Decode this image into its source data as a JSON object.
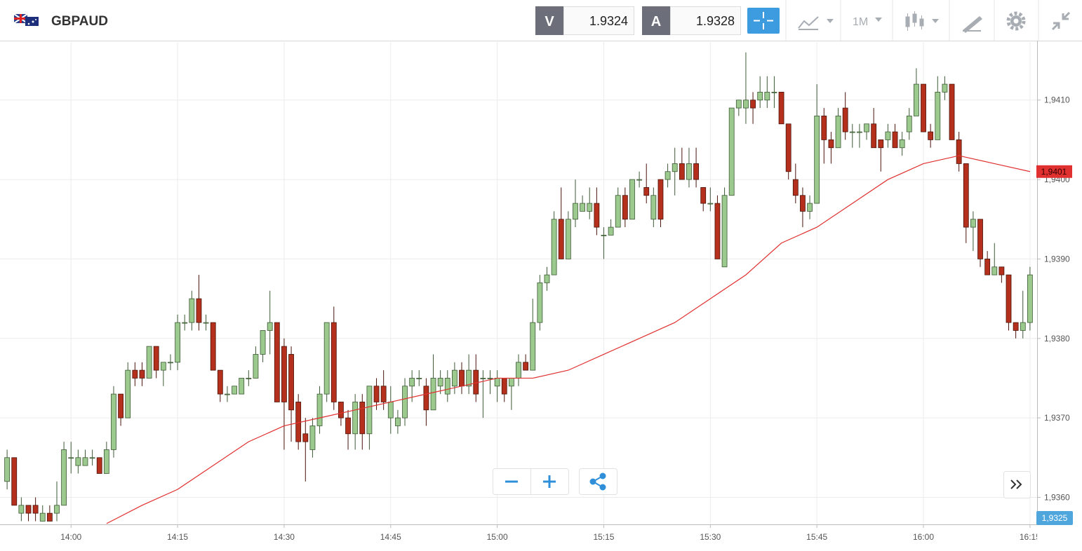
{
  "header": {
    "symbol": "GBPAUD",
    "bid_label": "V",
    "bid": "1.9324",
    "ask_label": "A",
    "ask": "1.9328",
    "timeframe": "1M"
  },
  "chart_data": {
    "type": "candlestick",
    "x": [
      "13:51",
      "13:52",
      "13:53",
      "13:54",
      "13:55",
      "13:56",
      "13:57",
      "13:58",
      "13:59",
      "14:00",
      "14:01",
      "14:02",
      "14:03",
      "14:04",
      "14:05",
      "14:06",
      "14:07",
      "14:08",
      "14:09",
      "14:10",
      "14:11",
      "14:12",
      "14:13",
      "14:14",
      "14:15",
      "14:16",
      "14:17",
      "14:18",
      "14:19",
      "14:20",
      "14:21",
      "14:22",
      "14:23",
      "14:24",
      "14:25",
      "14:26",
      "14:27",
      "14:28",
      "14:29",
      "14:30",
      "14:31",
      "14:32",
      "14:33",
      "14:34",
      "14:35",
      "14:36",
      "14:37",
      "14:38",
      "14:39",
      "14:40",
      "14:41",
      "14:42",
      "14:43",
      "14:44",
      "14:45",
      "14:46",
      "14:47",
      "14:48",
      "14:49",
      "14:50",
      "14:51",
      "14:52",
      "14:53",
      "14:54",
      "14:55",
      "14:56",
      "14:57",
      "14:58",
      "14:59",
      "15:00",
      "15:01",
      "15:02",
      "15:03",
      "15:04",
      "15:05",
      "15:06",
      "15:07",
      "15:08",
      "15:09",
      "15:10",
      "15:11",
      "15:12",
      "15:13",
      "15:14",
      "15:15",
      "15:16",
      "15:17",
      "15:18",
      "15:19",
      "15:20",
      "15:21",
      "15:22",
      "15:23",
      "15:24",
      "15:25",
      "15:26",
      "15:27",
      "15:28",
      "15:29",
      "15:30",
      "15:31",
      "15:32",
      "15:33",
      "15:34",
      "15:35",
      "15:36",
      "15:37",
      "15:38",
      "15:39",
      "15:40",
      "15:41",
      "15:42",
      "15:43",
      "15:44",
      "15:45",
      "15:46",
      "15:47",
      "15:48",
      "15:49",
      "15:50",
      "15:51",
      "15:52",
      "15:53",
      "15:54",
      "15:55",
      "15:56",
      "15:57",
      "15:58",
      "15:59",
      "16:00",
      "16:01",
      "16:02",
      "16:03",
      "16:04",
      "16:05",
      "16:06",
      "16:07",
      "16:08",
      "16:09",
      "16:10",
      "16:11",
      "16:12",
      "16:13",
      "16:14",
      "16:15"
    ],
    "open": [
      1.9362,
      1.9365,
      1.9358,
      1.9359,
      1.9359,
      1.9357,
      1.9358,
      1.9358,
      1.9359,
      1.9365,
      1.9364,
      1.9364,
      1.9365,
      1.9365,
      1.9363,
      1.9366,
      1.9373,
      1.937,
      1.9376,
      1.9376,
      1.9375,
      1.9379,
      1.9376,
      1.9377,
      1.9377,
      1.9382,
      1.9382,
      1.9385,
      1.9382,
      1.9382,
      1.9376,
      1.9373,
      1.9373,
      1.9373,
      1.9375,
      1.9375,
      1.9378,
      1.9381,
      1.9382,
      1.9379,
      1.9378,
      1.9372,
      1.9368,
      1.9366,
      1.9369,
      1.9373,
      1.9382,
      1.9372,
      1.937,
      1.9368,
      1.9372,
      1.9368,
      1.9374,
      1.9374,
      1.937,
      1.9369,
      1.937,
      1.9374,
      1.9375,
      1.9374,
      1.9371,
      1.9374,
      1.9373,
      1.9374,
      1.9376,
      1.9374,
      1.9376,
      1.9375,
      1.9375,
      1.9374,
      1.9375,
      1.9374,
      1.9375,
      1.9377,
      1.9376,
      1.9382,
      1.9387,
      1.9388,
      1.9395,
      1.939,
      1.9395,
      1.9396,
      1.9396,
      1.9397,
      1.9393,
      1.9393,
      1.9394,
      1.9398,
      1.9395,
      1.94,
      1.9399,
      1.9395,
      1.94,
      1.94,
      1.9401,
      1.9402,
      1.94,
      1.9402,
      1.9399,
      1.9397,
      1.9397,
      1.9389,
      1.9398,
      1.9409,
      1.9409,
      1.941,
      1.941,
      1.941,
      1.9411,
      1.9411,
      1.9407,
      1.94,
      1.9398,
      1.9396,
      1.9397,
      1.9408,
      1.9405,
      1.9404,
      1.9409,
      1.9406,
      1.9406,
      1.9406,
      1.9407,
      1.9405,
      1.9405,
      1.9406,
      1.9404,
      1.9406,
      1.9408,
      1.9412,
      1.9406,
      1.9405,
      1.9411,
      1.9412,
      1.9405,
      1.9402,
      1.9394,
      1.9395,
      1.939,
      1.9388,
      1.9389,
      1.9388,
      1.9382,
      1.9381,
      1.9382
    ],
    "high": [
      1.9366,
      1.9365,
      1.936,
      1.9359,
      1.936,
      1.9359,
      1.9359,
      1.9362,
      1.9367,
      1.9367,
      1.9366,
      1.9366,
      1.9366,
      1.9365,
      1.9367,
      1.9374,
      1.9373,
      1.9377,
      1.9377,
      1.9377,
      1.9379,
      1.9379,
      1.9377,
      1.9378,
      1.9383,
      1.9383,
      1.9386,
      1.9388,
      1.9383,
      1.9382,
      1.9376,
      1.9374,
      1.9374,
      1.9375,
      1.9376,
      1.9379,
      1.9381,
      1.9386,
      1.9382,
      1.938,
      1.9379,
      1.9373,
      1.937,
      1.937,
      1.9374,
      1.9382,
      1.9384,
      1.9372,
      1.9371,
      1.9373,
      1.9373,
      1.9374,
      1.9375,
      1.9376,
      1.9374,
      1.9371,
      1.9375,
      1.9376,
      1.9376,
      1.9375,
      1.9378,
      1.9376,
      1.9376,
      1.9377,
      1.9377,
      1.9378,
      1.9378,
      1.9376,
      1.9376,
      1.9376,
      1.9375,
      1.9375,
      1.9378,
      1.9378,
      1.9385,
      1.9388,
      1.9389,
      1.9396,
      1.9399,
      1.9396,
      1.94,
      1.9398,
      1.9399,
      1.9399,
      1.9394,
      1.9395,
      1.9399,
      1.9399,
      1.94,
      1.9401,
      1.9402,
      1.9399,
      1.94,
      1.9402,
      1.9404,
      1.9404,
      1.9404,
      1.9404,
      1.9399,
      1.9399,
      1.9398,
      1.9399,
      1.9409,
      1.941,
      1.9416,
      1.9411,
      1.9413,
      1.9413,
      1.9413,
      1.9411,
      1.9407,
      1.9402,
      1.9399,
      1.9398,
      1.9412,
      1.9409,
      1.9406,
      1.9409,
      1.9411,
      1.9407,
      1.9407,
      1.9407,
      1.9409,
      1.9405,
      1.9407,
      1.9407,
      1.9406,
      1.9409,
      1.9414,
      1.9412,
      1.9407,
      1.9413,
      1.9413,
      1.9412,
      1.9406,
      1.9402,
      1.9396,
      1.9395,
      1.9391,
      1.9392,
      1.9389,
      1.9388,
      1.9382,
      1.9386,
      1.9389
    ],
    "low": [
      1.9361,
      1.9359,
      1.9357,
      1.9357,
      1.9357,
      1.9357,
      1.9357,
      1.9357,
      1.9359,
      1.9363,
      1.9363,
      1.9364,
      1.9364,
      1.9363,
      1.9363,
      1.9365,
      1.9369,
      1.937,
      1.9374,
      1.9374,
      1.9375,
      1.9375,
      1.9374,
      1.9376,
      1.9376,
      1.9381,
      1.9381,
      1.9381,
      1.9381,
      1.9376,
      1.9372,
      1.9372,
      1.9373,
      1.9373,
      1.9374,
      1.9375,
      1.9377,
      1.9378,
      1.9372,
      1.9366,
      1.9367,
      1.9366,
      1.9362,
      1.9365,
      1.9368,
      1.9372,
      1.9371,
      1.9369,
      1.9366,
      1.9366,
      1.9366,
      1.9366,
      1.9371,
      1.9371,
      1.9368,
      1.9368,
      1.9369,
      1.9372,
      1.9374,
      1.9369,
      1.9371,
      1.9373,
      1.9372,
      1.9373,
      1.9373,
      1.9373,
      1.9372,
      1.937,
      1.9373,
      1.9372,
      1.9372,
      1.9371,
      1.9374,
      1.9376,
      1.9376,
      1.9381,
      1.9386,
      1.9388,
      1.939,
      1.939,
      1.9394,
      1.9396,
      1.9395,
      1.9393,
      1.939,
      1.9393,
      1.9394,
      1.9394,
      1.9395,
      1.9399,
      1.9397,
      1.9394,
      1.9394,
      1.9399,
      1.9398,
      1.94,
      1.9399,
      1.9399,
      1.9396,
      1.9396,
      1.939,
      1.9389,
      1.9398,
      1.9408,
      1.9407,
      1.9407,
      1.9409,
      1.9409,
      1.9409,
      1.9407,
      1.94,
      1.9397,
      1.9394,
      1.9395,
      1.9397,
      1.9402,
      1.9402,
      1.9404,
      1.9405,
      1.9404,
      1.9404,
      1.9405,
      1.9404,
      1.9401,
      1.9404,
      1.9404,
      1.9403,
      1.9405,
      1.9408,
      1.9406,
      1.9404,
      1.9405,
      1.941,
      1.9405,
      1.9401,
      1.9392,
      1.9391,
      1.9389,
      1.9388,
      1.9388,
      1.9387,
      1.9381,
      1.938,
      1.938,
      1.9381
    ],
    "close": [
      1.9365,
      1.9359,
      1.9359,
      1.9358,
      1.9358,
      1.9358,
      1.9357,
      1.9359,
      1.9366,
      1.9365,
      1.9365,
      1.9365,
      1.9365,
      1.9363,
      1.9366,
      1.9373,
      1.937,
      1.9376,
      1.9375,
      1.9375,
      1.9379,
      1.9376,
      1.9377,
      1.9377,
      1.9382,
      1.9382,
      1.9385,
      1.9382,
      1.9382,
      1.9376,
      1.9373,
      1.9373,
      1.9374,
      1.9375,
      1.9375,
      1.9378,
      1.9381,
      1.9382,
      1.9372,
      1.9372,
      1.9371,
      1.9367,
      1.9367,
      1.9369,
      1.9373,
      1.9382,
      1.9372,
      1.937,
      1.9368,
      1.9372,
      1.9368,
      1.9374,
      1.9372,
      1.9372,
      1.9372,
      1.937,
      1.9374,
      1.9375,
      1.9375,
      1.9371,
      1.9375,
      1.9375,
      1.9375,
      1.9376,
      1.9374,
      1.9376,
      1.9373,
      1.9375,
      1.9375,
      1.9375,
      1.9373,
      1.9375,
      1.9377,
      1.9376,
      1.9382,
      1.9387,
      1.9388,
      1.9395,
      1.939,
      1.9395,
      1.9397,
      1.9397,
      1.9397,
      1.9394,
      1.9393,
      1.9394,
      1.9398,
      1.9395,
      1.94,
      1.94,
      1.9398,
      1.9398,
      1.9395,
      1.9401,
      1.9402,
      1.94,
      1.9402,
      1.94,
      1.9397,
      1.9397,
      1.939,
      1.9398,
      1.9409,
      1.941,
      1.941,
      1.9409,
      1.9411,
      1.9411,
      1.9411,
      1.9407,
      1.9401,
      1.9398,
      1.9396,
      1.9397,
      1.9408,
      1.9405,
      1.9404,
      1.9408,
      1.9406,
      1.9406,
      1.9406,
      1.9407,
      1.9404,
      1.9404,
      1.9406,
      1.9404,
      1.9405,
      1.9408,
      1.9412,
      1.9406,
      1.9405,
      1.9411,
      1.9412,
      1.9405,
      1.9402,
      1.9394,
      1.9395,
      1.939,
      1.9388,
      1.9389,
      1.9388,
      1.9382,
      1.9381,
      1.9382,
      1.9388
    ],
    "up_color": "#9cc98d",
    "down_color": "#b5301c",
    "moving_average": {
      "color": "#e03030",
      "x": [
        "14:05",
        "14:10",
        "14:15",
        "14:20",
        "14:25",
        "14:30",
        "14:35",
        "14:40",
        "14:45",
        "14:50",
        "14:55",
        "15:00",
        "15:05",
        "15:10",
        "15:15",
        "15:20",
        "15:25",
        "15:30",
        "15:35",
        "15:40",
        "15:45",
        "15:50",
        "15:55",
        "16:00",
        "16:05",
        "16:10",
        "16:15"
      ],
      "values": [
        1.93567,
        1.9359,
        1.9361,
        1.9364,
        1.9367,
        1.9369,
        1.937,
        1.9371,
        1.9372,
        1.9373,
        1.9374,
        1.9375,
        1.9375,
        1.9376,
        1.9378,
        1.938,
        1.9382,
        1.9385,
        1.9388,
        1.9392,
        1.9394,
        1.9397,
        1.94,
        1.9402,
        1.9403,
        1.9402,
        1.9401
      ],
      "last_label": {
        "value": 1.9401,
        "label": "1,9401"
      }
    },
    "current_price_label": "1,9325",
    "xlim": [
      "13:50",
      "16:16"
    ],
    "xticks": [
      "14:00",
      "14:15",
      "14:30",
      "14:45",
      "15:00",
      "15:15",
      "15:30",
      "15:45",
      "16:00",
      "16:15"
    ],
    "ylim": [
      1.93566,
      1.94173
    ],
    "yticks": [
      {
        "value": 1.936,
        "label": "1,9360"
      },
      {
        "value": 1.937,
        "label": "1,9370"
      },
      {
        "value": 1.938,
        "label": "1,9380"
      },
      {
        "value": 1.939,
        "label": "1,9390"
      },
      {
        "value": 1.94,
        "label": "1,9400"
      },
      {
        "value": 1.941,
        "label": "1,9410"
      }
    ],
    "grid": true
  }
}
